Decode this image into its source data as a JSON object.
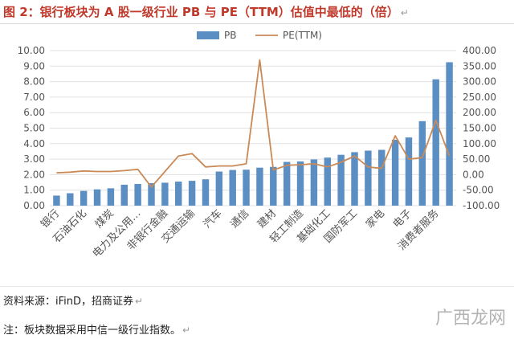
{
  "header": {
    "title": "图 2：银行板块为 A 股一级行业 PB 与 PE（TTM）估值中最低的（倍）"
  },
  "footer": {
    "source": "资料来源：iFinD，招商证券",
    "note": "注：板块数据采用中信一级行业指数。"
  },
  "watermark": "广西龙网",
  "colors": {
    "title": "#c0392b",
    "bar": "#5b8fc3",
    "line": "#c98a57",
    "axis_text": "#555555",
    "gridline": "#e0e0e0"
  },
  "chart_data": {
    "type": "bar",
    "categories": [
      "银行",
      "",
      "石油石化",
      "",
      "煤炭",
      "",
      "电力及公用…",
      "",
      "非银行金融",
      "",
      "交通运输",
      "",
      "汽车",
      "",
      "通信",
      "",
      "建材",
      "",
      "轻工制造",
      "",
      "基础化工",
      "",
      "国防军工",
      "",
      "家电",
      "",
      "电子",
      "",
      "消费者服务",
      ""
    ],
    "series": [
      {
        "name": "PB",
        "type": "bar",
        "axis": "left",
        "values": [
          0.65,
          0.8,
          0.95,
          1.05,
          1.12,
          1.35,
          1.4,
          1.45,
          1.48,
          1.55,
          1.6,
          1.7,
          2.2,
          2.3,
          2.32,
          2.45,
          2.5,
          2.82,
          2.85,
          2.98,
          3.1,
          3.28,
          3.45,
          3.55,
          3.6,
          4.25,
          4.4,
          5.45,
          8.15,
          9.25
        ]
      },
      {
        "name": "PE(TTM)",
        "type": "line",
        "axis": "right",
        "values": [
          6,
          8,
          12,
          10,
          10,
          13,
          17,
          -40,
          10,
          60,
          68,
          25,
          28,
          28,
          35,
          370,
          15,
          30,
          32,
          35,
          25,
          40,
          60,
          25,
          20,
          125,
          50,
          55,
          175,
          60
        ]
      }
    ],
    "y_left": {
      "min": 0,
      "max": 10,
      "ticks": [
        "0.00",
        "1.00",
        "2.00",
        "3.00",
        "4.00",
        "5.00",
        "6.00",
        "7.00",
        "8.00",
        "9.00",
        "10.00"
      ]
    },
    "y_right": {
      "min": -100,
      "max": 400,
      "ticks": [
        "-100.00",
        "-50.00",
        "0.00",
        "50.00",
        "100.00",
        "150.00",
        "200.00",
        "250.00",
        "300.00",
        "350.00",
        "400.00"
      ]
    },
    "legend_position": "top-center",
    "grid": true
  }
}
